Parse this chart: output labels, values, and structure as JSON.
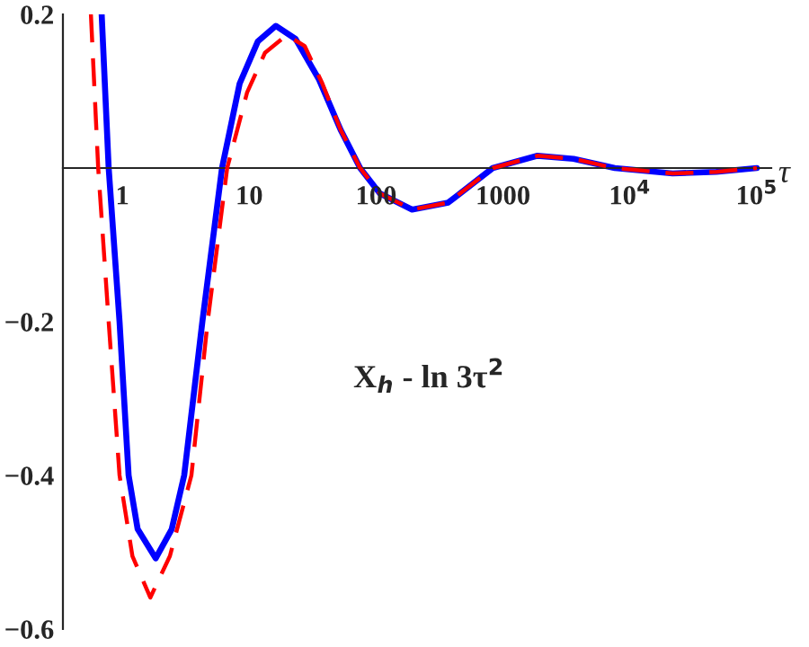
{
  "chart_data": {
    "type": "line",
    "xlabel": "τ",
    "log": "x",
    "xlim": [
      0.34,
      130000
    ],
    "ylim": [
      -0.6,
      0.2
    ],
    "xticks": [
      1,
      10,
      100,
      1000,
      {
        "value": 10000,
        "label": "10$^{4}$"
      },
      {
        "value": 100000,
        "label": "10$^{5}$"
      }
    ],
    "yticks": [
      -0.6,
      -0.4,
      -0.2,
      0.2
    ],
    "grid": false,
    "legend": false,
    "marker": "none",
    "annotations": [
      "X$_{h}$ - ln 3τ$^{2}$"
    ],
    "series": [
      {
        "color": "#0000ff",
        "line_style": "solid",
        "x": [
          0.687,
          0.78,
          0.95,
          1.12,
          1.32,
          1.83,
          2.45,
          3.07,
          4.27,
          6.1,
          8.4,
          11.7,
          16.2,
          23.2,
          35.5,
          52.4,
          74.8,
          107,
          192,
          370,
          830,
          1870,
          3600,
          7600,
          21700,
          48000,
          100000
        ],
        "values": [
          0.2,
          0,
          -0.2,
          -0.4,
          -0.47,
          -0.508,
          -0.47,
          -0.4,
          -0.2,
          0,
          0.11,
          0.165,
          0.185,
          0.168,
          0.115,
          0.05,
          0,
          -0.033,
          -0.054,
          -0.045,
          0,
          0.016,
          0.012,
          0,
          -0.007,
          -0.005,
          0
        ]
      },
      {
        "color": "#ff0000",
        "line_style": "dashed",
        "x": [
          0.565,
          0.645,
          0.78,
          0.95,
          1.2,
          1.66,
          2.37,
          3.5,
          4.7,
          6.7,
          9.6,
          13.3,
          19.7,
          27.3,
          37.7,
          52.4,
          74.8,
          107,
          192,
          370,
          830,
          1870,
          3600,
          7600,
          21700,
          48000,
          100000
        ],
        "values": [
          0.2,
          0,
          -0.2,
          -0.4,
          -0.505,
          -0.559,
          -0.505,
          -0.4,
          -0.2,
          0,
          0.098,
          0.15,
          0.173,
          0.159,
          0.11,
          0.05,
          0,
          -0.033,
          -0.054,
          -0.045,
          0,
          0.016,
          0.012,
          0,
          -0.007,
          -0.005,
          0
        ]
      }
    ]
  }
}
